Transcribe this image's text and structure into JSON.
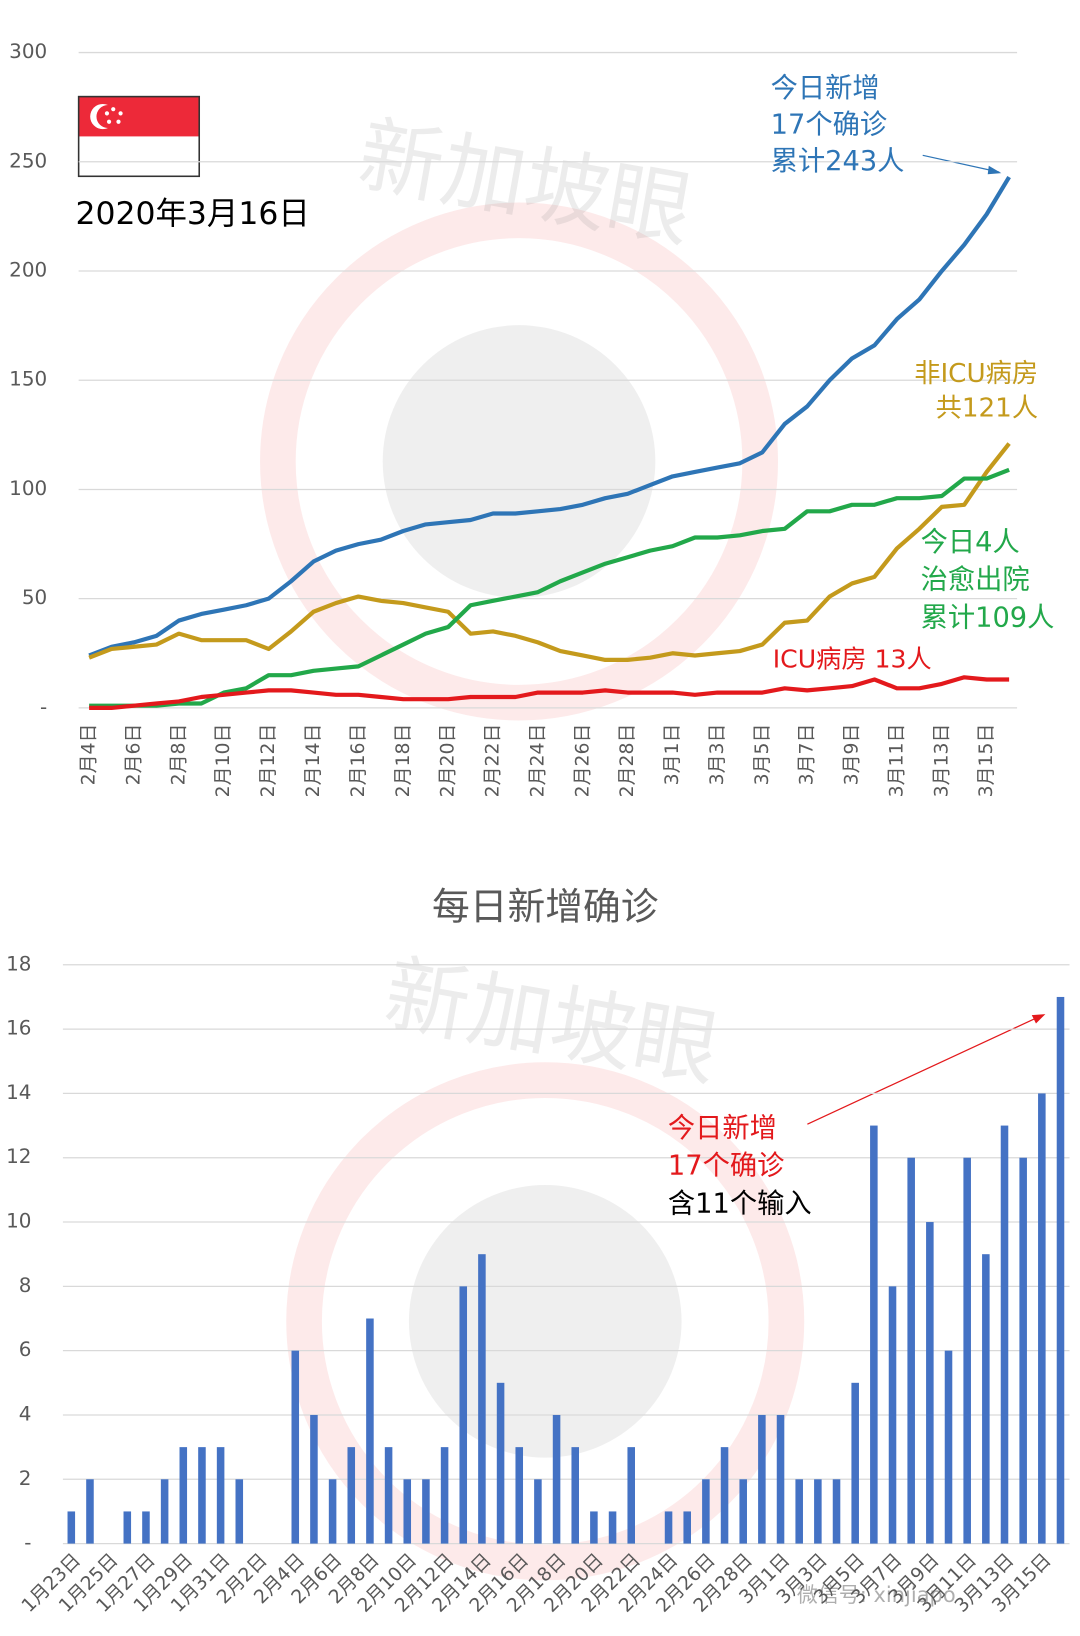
{
  "watermark": "新加坡眼",
  "footer_mark": "微信号: xinjiapo",
  "chart_data": [
    {
      "type": "line",
      "date_label": "2020年3月16日",
      "categories": [
        "2月4日",
        null,
        "2月6日",
        null,
        "2月8日",
        null,
        "2月10日",
        null,
        "2月12日",
        null,
        "2月14日",
        null,
        "2月16日",
        null,
        "2月18日",
        null,
        "2月20日",
        null,
        "2月22日",
        null,
        "2月24日",
        null,
        "2月26日",
        null,
        "2月28日",
        null,
        "3月1日",
        null,
        "3月3日",
        null,
        "3月5日",
        null,
        "3月7日",
        null,
        "3月9日",
        null,
        "3月11日",
        null,
        "3月13日",
        null,
        "3月15日",
        null
      ],
      "series": [
        {
          "color": "#2e75b6",
          "values": [
            24,
            28,
            30,
            33,
            40,
            43,
            45,
            47,
            50,
            58,
            67,
            72,
            75,
            77,
            81,
            84,
            85,
            86,
            89,
            89,
            90,
            91,
            93,
            96,
            98,
            102,
            106,
            108,
            110,
            112,
            117,
            130,
            138,
            150,
            160,
            166,
            178,
            187,
            200,
            212,
            226,
            243
          ]
        },
        {
          "color": "#c49a1c",
          "values": [
            23,
            27,
            28,
            29,
            34,
            31,
            31,
            31,
            27,
            35,
            44,
            48,
            51,
            49,
            48,
            46,
            44,
            34,
            35,
            33,
            30,
            26,
            24,
            22,
            22,
            23,
            25,
            24,
            25,
            26,
            29,
            39,
            40,
            51,
            57,
            60,
            73,
            82,
            92,
            93,
            108,
            121
          ]
        },
        {
          "color": "#22a84a",
          "values": [
            1,
            1,
            1,
            1,
            2,
            2,
            7,
            9,
            15,
            15,
            17,
            18,
            19,
            24,
            29,
            34,
            37,
            47,
            49,
            51,
            53,
            58,
            62,
            66,
            69,
            72,
            74,
            78,
            78,
            79,
            81,
            82,
            90,
            90,
            93,
            93,
            96,
            96,
            97,
            105,
            105,
            109
          ]
        },
        {
          "color": "#e3191c",
          "values": [
            0,
            0,
            1,
            2,
            3,
            5,
            6,
            7,
            8,
            8,
            7,
            6,
            6,
            5,
            4,
            4,
            4,
            5,
            5,
            5,
            7,
            7,
            7,
            8,
            7,
            7,
            7,
            6,
            7,
            7,
            7,
            9,
            8,
            9,
            10,
            13,
            9,
            9,
            11,
            14,
            13,
            13
          ]
        }
      ],
      "annotations": [
        {
          "lines": [
            "今日新增",
            "17个确诊",
            "累计243人"
          ],
          "colors": [
            "#2e75b6",
            "#2e75b6",
            "#2e75b6"
          ]
        },
        {
          "lines": [
            "非ICU病房",
            "共121人"
          ],
          "colors": [
            "#c49a1c",
            "#c49a1c"
          ]
        },
        {
          "lines": [
            "今日4人",
            "治愈出院",
            "累计109人"
          ],
          "colors": [
            "#22a84a",
            "#22a84a",
            "#22a84a"
          ]
        },
        {
          "lines": [
            "ICU病房 13人"
          ],
          "colors": [
            "#e3191c"
          ]
        }
      ],
      "ylim": [
        0,
        300
      ],
      "yticks": [
        {
          "value": 0,
          "label": "-"
        },
        50,
        100,
        150,
        200,
        250,
        300
      ],
      "grid": true
    },
    {
      "type": "bar",
      "title": "每日新增确诊",
      "categories": [
        "1月23日",
        null,
        "1月25日",
        null,
        "1月27日",
        null,
        "1月29日",
        null,
        "1月31日",
        null,
        "2月2日",
        null,
        "2月4日",
        null,
        "2月6日",
        null,
        "2月8日",
        null,
        "2月10日",
        null,
        "2月12日",
        null,
        "2月14日",
        null,
        "2月16日",
        null,
        "2月18日",
        null,
        "2月20日",
        null,
        "2月22日",
        null,
        "2月24日",
        null,
        "2月26日",
        null,
        "2月28日",
        null,
        "3月1日",
        null,
        "3月3日",
        null,
        "3月5日",
        null,
        "3月7日",
        null,
        "3月9日",
        null,
        "3月11日",
        null,
        "3月13日",
        null,
        "3月15日",
        null
      ],
      "values": [
        1,
        2,
        0,
        1,
        1,
        2,
        3,
        3,
        3,
        2,
        0,
        0,
        6,
        4,
        2,
        3,
        7,
        3,
        2,
        2,
        3,
        8,
        9,
        5,
        3,
        2,
        4,
        3,
        1,
        1,
        3,
        0,
        1,
        1,
        2,
        3,
        2,
        4,
        4,
        2,
        2,
        2,
        5,
        13,
        8,
        12,
        10,
        6,
        12,
        9,
        13,
        12,
        14,
        17
      ],
      "color": "#4472c4",
      "annotations": [
        {
          "lines": [
            "今日新增",
            "17个确诊",
            "含11个输入"
          ],
          "colors": [
            "#e3191c",
            "#e3191c",
            "#000000"
          ]
        }
      ],
      "ylim": [
        0,
        18
      ],
      "yticks": [
        {
          "value": 0,
          "label": "-"
        },
        2,
        4,
        6,
        8,
        10,
        12,
        14,
        16,
        18
      ],
      "grid": true
    }
  ]
}
